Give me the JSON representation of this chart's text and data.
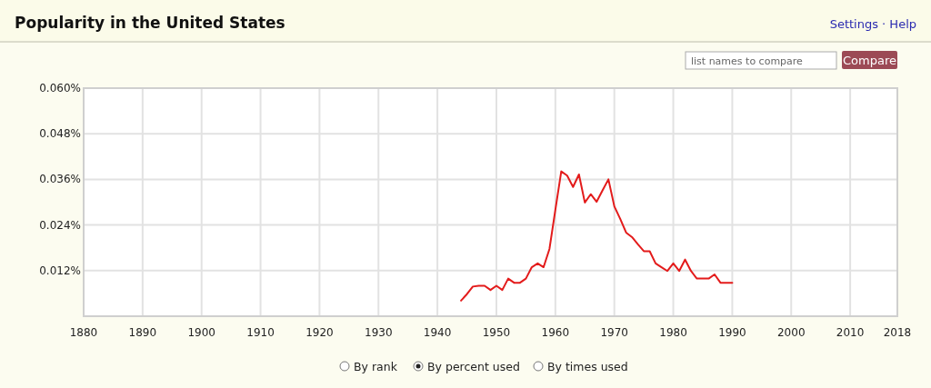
{
  "chart_data": {
    "type": "line",
    "title": "Popularity in the United States",
    "x": [
      1944,
      1945,
      1946,
      1947,
      1948,
      1949,
      1950,
      1951,
      1952,
      1953,
      1954,
      1955,
      1956,
      1957,
      1958,
      1959,
      1960,
      1961,
      1962,
      1963,
      1964,
      1965,
      1966,
      1967,
      1968,
      1969,
      1970,
      1971,
      1972,
      1973,
      1974,
      1975,
      1976,
      1977,
      1978,
      1979,
      1980,
      1981,
      1982,
      1983,
      1984,
      1985,
      1986,
      1987,
      1988,
      1989,
      1990
    ],
    "series": [
      {
        "color": "#e31b1b",
        "values": [
          0.0041,
          0.0058,
          0.0078,
          0.008,
          0.008,
          0.0069,
          0.008,
          0.0069,
          0.0099,
          0.0088,
          0.0088,
          0.0099,
          0.0129,
          0.0139,
          0.0129,
          0.0177,
          0.028,
          0.0381,
          0.037,
          0.034,
          0.0373,
          0.0299,
          0.0321,
          0.0301,
          0.0331,
          0.036,
          0.0289,
          0.0256,
          0.022,
          0.0208,
          0.0189,
          0.0171,
          0.0171,
          0.0139,
          0.0129,
          0.0119,
          0.0139,
          0.0119,
          0.0149,
          0.0119,
          0.0099,
          0.0099,
          0.0099,
          0.011,
          0.0088,
          0.0088,
          0.0088
        ]
      }
    ],
    "xlim": [
      1880,
      2018
    ],
    "xticks": [
      1880,
      1890,
      1900,
      1910,
      1920,
      1930,
      1940,
      1950,
      1960,
      1970,
      1980,
      1990,
      2000,
      2010,
      2018
    ],
    "ylim": [
      0,
      0.06
    ],
    "yticks": [
      {
        "value": 0.012,
        "label": "0.012%"
      },
      {
        "value": 0.024,
        "label": "0.024%"
      },
      {
        "value": 0.036,
        "label": "0.036%"
      },
      {
        "value": 0.048,
        "label": "0.048%"
      },
      {
        "value": 0.06,
        "label": "0.060%"
      }
    ],
    "grid": true,
    "marker": "none",
    "line_style": "solid",
    "annotations": [
      "Settings · Help",
      "list names to compare",
      "Compare",
      "By rank",
      "By percent used",
      "By times used"
    ]
  }
}
